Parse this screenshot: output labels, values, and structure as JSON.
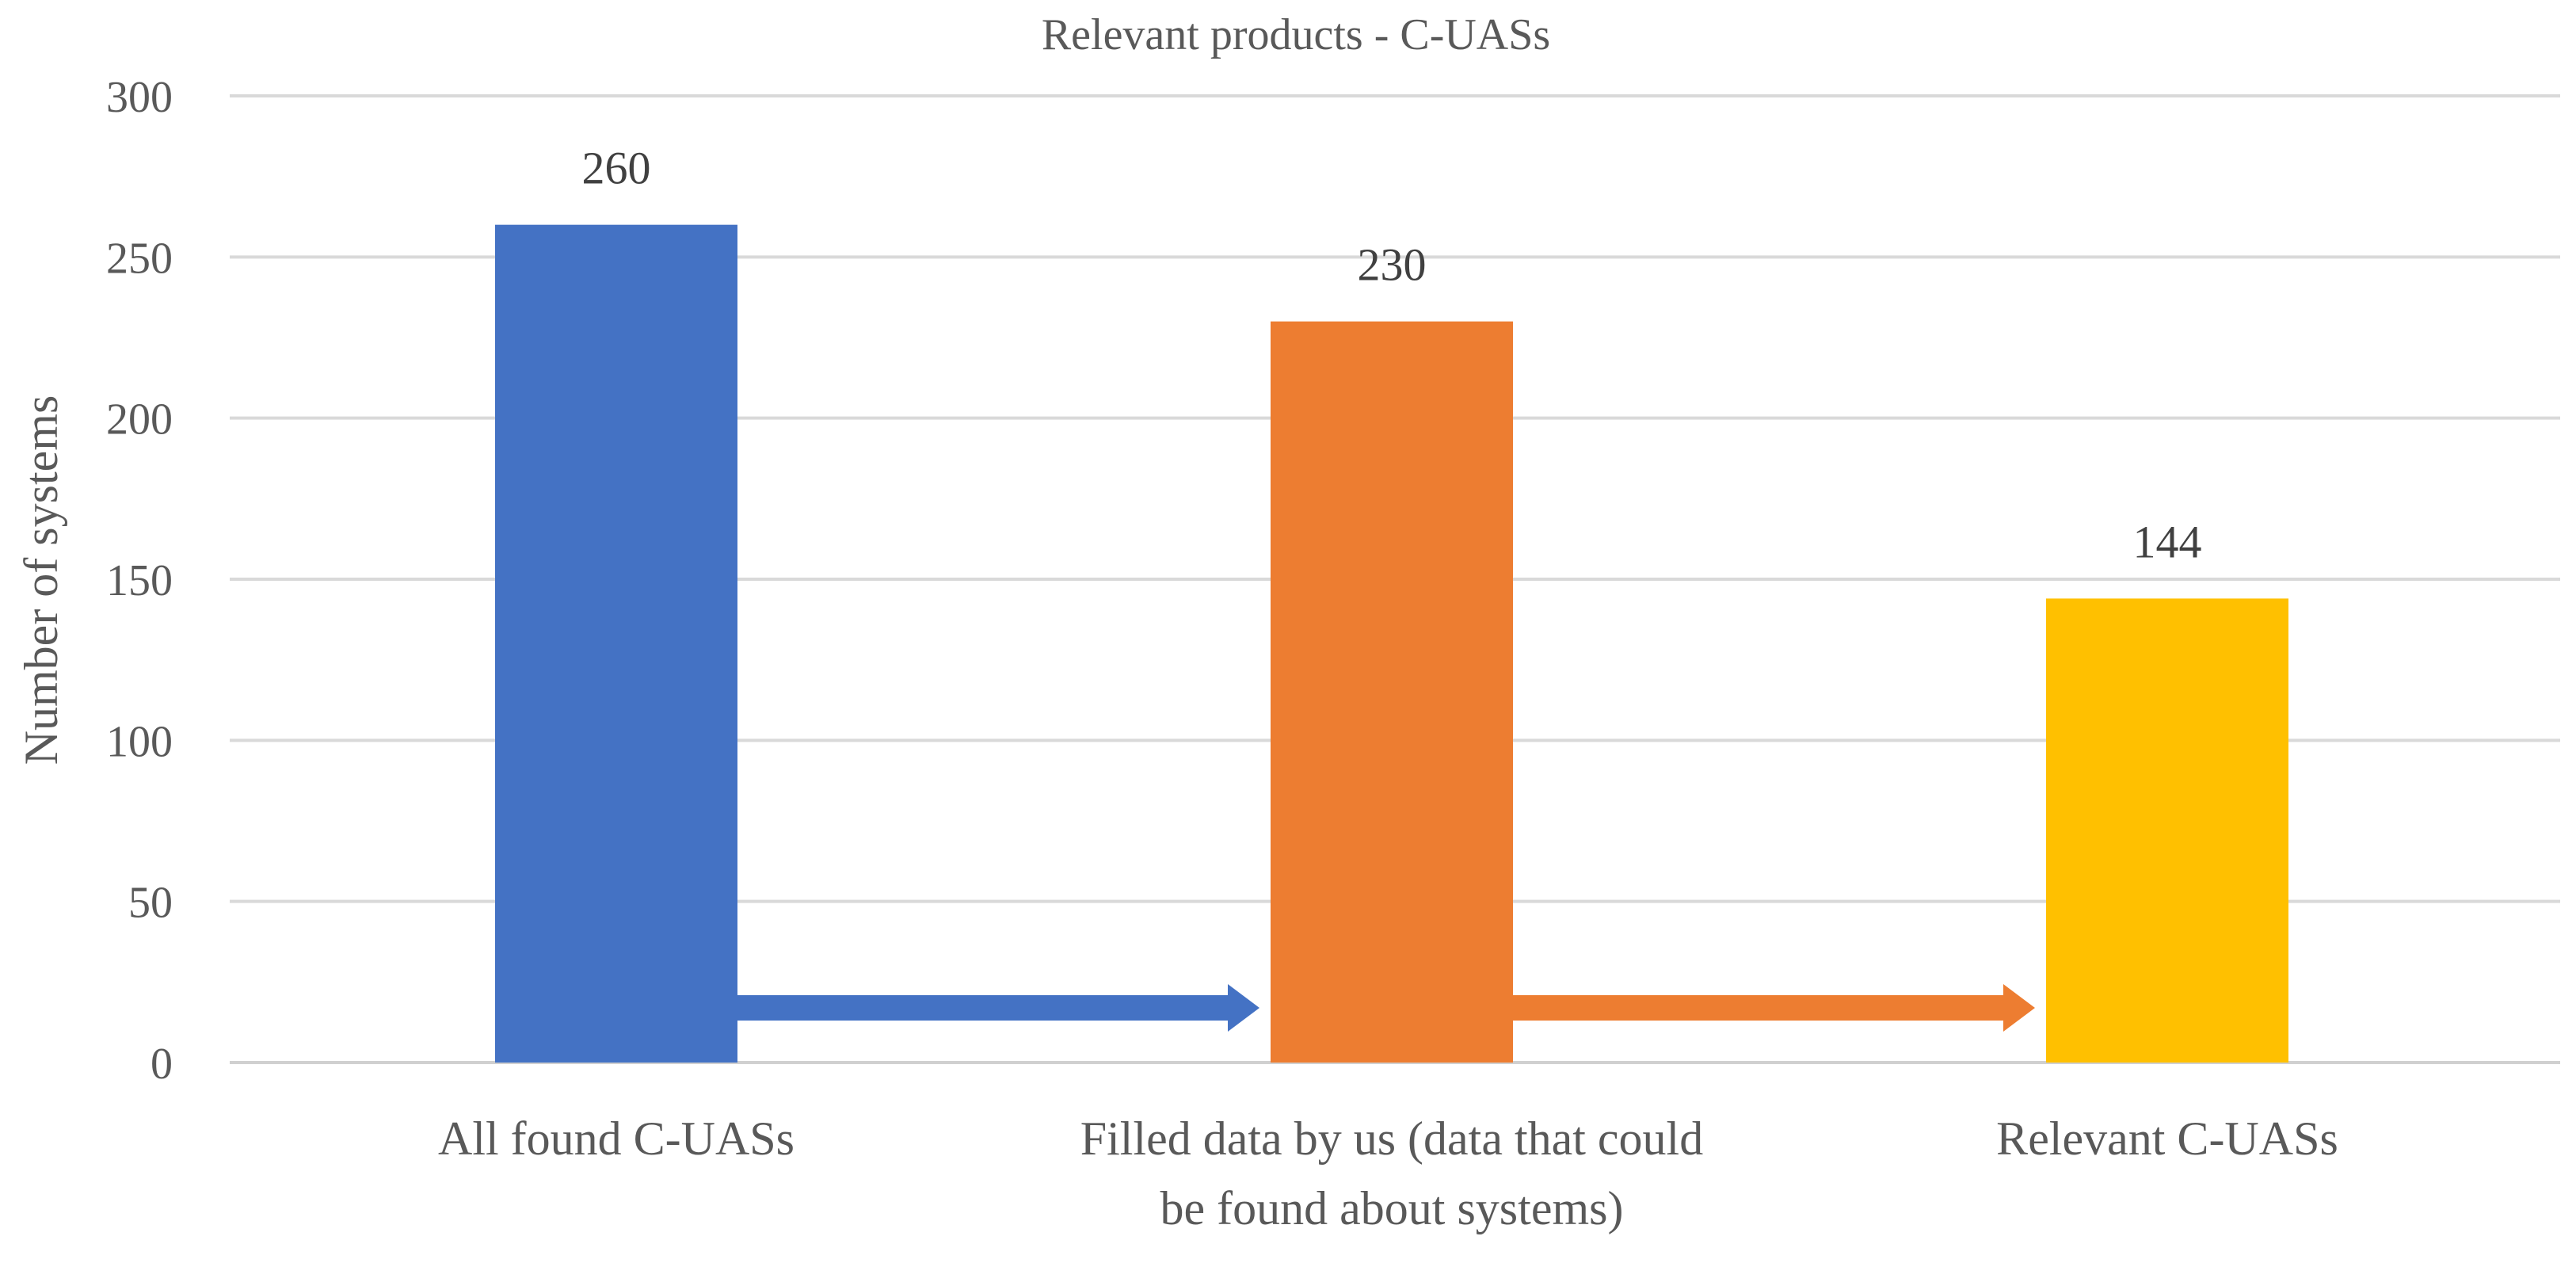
{
  "chart_data": {
    "type": "bar",
    "title": "Relevant products - C-UASs",
    "xlabel": "",
    "ylabel": "Number of systems",
    "categories": [
      [
        "All found C-UASs"
      ],
      [
        "Filled data by us (data that could",
        "be found about systems)"
      ],
      [
        "Relevant C-UASs"
      ]
    ],
    "values": [
      260,
      230,
      144
    ],
    "data_labels": [
      "260",
      "230",
      "144"
    ],
    "colors": [
      "#4472C4",
      "#ED7D31",
      "#FFC000"
    ],
    "ylim": [
      0,
      300
    ],
    "yticks": [
      0,
      50,
      100,
      150,
      200,
      250,
      300
    ],
    "grid": true,
    "annotations": [
      {
        "type": "arrow",
        "from_category": 0,
        "to_category": 1,
        "color": "#4472C4"
      },
      {
        "type": "arrow",
        "from_category": 1,
        "to_category": 2,
        "color": "#ED7D31"
      }
    ]
  }
}
